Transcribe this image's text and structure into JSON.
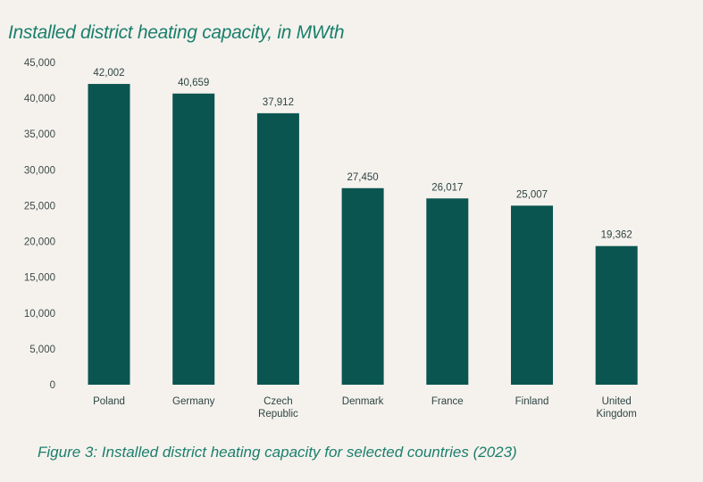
{
  "title": "Installed district heating capacity, in MWth",
  "caption": "Figure 3: Installed district heating capacity for selected countries (2023)",
  "colors": {
    "bar": "#0b5550",
    "title": "#1b7f6c",
    "background": "#f5f2ee"
  },
  "chart_data": {
    "type": "bar",
    "title": "Installed district heating capacity, in MWth",
    "categories": [
      [
        "Poland"
      ],
      [
        "Germany"
      ],
      [
        "Czech",
        "Republic"
      ],
      [
        "Denmark"
      ],
      [
        "France"
      ],
      [
        "Finland"
      ],
      [
        "United",
        "Kingdom"
      ]
    ],
    "values": [
      42002,
      40659,
      37912,
      27450,
      26017,
      25007,
      19362
    ],
    "data_labels": [
      "42,002",
      "40,659",
      "37,912",
      "27,450",
      "26,017",
      "25,007",
      "19,362"
    ],
    "yticks": [
      "0",
      "5,000",
      "10,000",
      "15,000",
      "20,000",
      "25,000",
      "30,000",
      "35,000",
      "40,000",
      "45,000"
    ],
    "ylim": [
      0,
      45000
    ],
    "grid": false,
    "xlabel": "",
    "ylabel": ""
  }
}
